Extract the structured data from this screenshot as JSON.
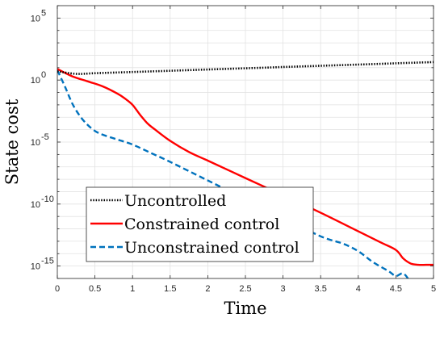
{
  "chart_data": {
    "type": "line",
    "xlabel": "Time",
    "ylabel": "State cost",
    "xlim": [
      0,
      5
    ],
    "ylim_log10": [
      -16,
      6
    ],
    "yscale": "log",
    "grid": true,
    "legend_position": "bottom-left",
    "x_ticks": [
      "0",
      "0.5",
      "1",
      "1.5",
      "2",
      "2.5",
      "3",
      "3.5",
      "4",
      "4.5",
      "5"
    ],
    "x_tick_values": [
      0,
      0.5,
      1,
      1.5,
      2,
      2.5,
      3,
      3.5,
      4,
      4.5,
      5
    ],
    "y_ticks": [
      {
        "base": "10",
        "exp": "5",
        "log": 5
      },
      {
        "base": "10",
        "exp": "0",
        "log": 0
      },
      {
        "base": "10",
        "exp": "-5",
        "log": -5
      },
      {
        "base": "10",
        "exp": "-10",
        "log": -10
      },
      {
        "base": "10",
        "exp": "-15",
        "log": -15
      }
    ],
    "series": [
      {
        "name": "Uncontrolled",
        "color": "#000000",
        "style": "dotted",
        "x": [
          0,
          0.25,
          0.5,
          1,
          1.5,
          2,
          2.5,
          3,
          3.5,
          4,
          4.5,
          5
        ],
        "log10_y": [
          0.7,
          0.5,
          0.55,
          0.65,
          0.75,
          0.85,
          0.95,
          1.05,
          1.15,
          1.25,
          1.35,
          1.45
        ]
      },
      {
        "name": "Constrained control",
        "color": "#ff0000",
        "style": "solid",
        "x": [
          0,
          0.2,
          0.4,
          0.6,
          0.8,
          0.9,
          1.0,
          1.1,
          1.2,
          1.3,
          1.5,
          1.75,
          2.0,
          2.5,
          3.0,
          3.5,
          4.0,
          4.3,
          4.5,
          4.6,
          4.7,
          4.8,
          4.9,
          5.0
        ],
        "log10_y": [
          0.9,
          0.3,
          -0.1,
          -0.5,
          -1.1,
          -1.5,
          -2.0,
          -2.8,
          -3.5,
          -4.0,
          -4.9,
          -5.8,
          -6.5,
          -7.9,
          -9.3,
          -10.7,
          -12.2,
          -13.1,
          -13.7,
          -14.4,
          -14.8,
          -14.9,
          -14.9,
          -14.9
        ]
      },
      {
        "name": "Unconstrained control",
        "color": "#0072bd",
        "style": "dashed",
        "x": [
          0,
          0.1,
          0.2,
          0.3,
          0.4,
          0.5,
          0.6,
          0.8,
          1.0,
          1.25,
          1.5,
          2.0,
          2.5,
          3.0,
          3.5,
          3.8,
          4.0,
          4.2,
          4.4,
          4.5,
          4.6,
          4.7,
          4.8,
          4.9,
          5.0
        ],
        "log10_y": [
          0.8,
          -0.5,
          -1.9,
          -2.9,
          -3.6,
          -4.1,
          -4.4,
          -4.8,
          -5.2,
          -5.9,
          -6.6,
          -8.1,
          -9.6,
          -11.1,
          -12.6,
          -13.2,
          -13.8,
          -14.7,
          -15.4,
          -15.8,
          -15.6,
          -16.4,
          -17.6,
          -18.3,
          -17.9
        ]
      }
    ]
  }
}
